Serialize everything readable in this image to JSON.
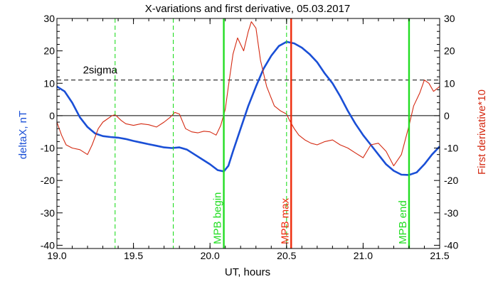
{
  "chart_data": {
    "type": "line",
    "title": "X-variations and first derivative, 05.03.2017",
    "xlabel": "UT, hours",
    "ylabel_left": "deltaX, nT",
    "ylabel_right": "First derivative*10",
    "xlim": [
      19.0,
      21.5
    ],
    "ylim": [
      -41,
      30
    ],
    "x_ticks": [
      19.0,
      19.5,
      20.0,
      20.5,
      21.0,
      21.5
    ],
    "x_tick_labels": [
      "19.0",
      "19.5",
      "20.0",
      "20.5",
      "21.0",
      "21.5"
    ],
    "y_ticks": [
      -40,
      -30,
      -20,
      -10,
      0,
      10,
      20,
      30
    ],
    "y_tick_labels": [
      "-40",
      "-30",
      "-20",
      "-10",
      "0",
      "10",
      "20",
      "30"
    ],
    "grid": false,
    "colors": {
      "deltaX": "#1a4fd6",
      "derivative": "#d42a12",
      "mpb_green": "#22dd22",
      "mpb_red": "#ee2a0a"
    },
    "series": [
      {
        "key": "deltaX",
        "axis": "left",
        "x": [
          19.0,
          19.05,
          19.1,
          19.15,
          19.2,
          19.25,
          19.3,
          19.35,
          19.4,
          19.45,
          19.5,
          19.55,
          19.6,
          19.65,
          19.7,
          19.75,
          19.8,
          19.85,
          19.9,
          19.95,
          20.0,
          20.05,
          20.09,
          20.12,
          20.15,
          20.2,
          20.25,
          20.3,
          20.35,
          20.4,
          20.45,
          20.5,
          20.55,
          20.6,
          20.65,
          20.7,
          20.75,
          20.8,
          20.85,
          20.9,
          20.95,
          21.0,
          21.05,
          21.1,
          21.15,
          21.2,
          21.25,
          21.3,
          21.35,
          21.4,
          21.45,
          21.5
        ],
        "values": [
          9,
          7.5,
          4,
          -0.5,
          -3.5,
          -5.5,
          -6.3,
          -6.6,
          -6.8,
          -7.2,
          -7.8,
          -8.3,
          -8.8,
          -9.3,
          -9.8,
          -10,
          -9.8,
          -10.5,
          -12,
          -13.5,
          -15,
          -16.8,
          -17.2,
          -15.5,
          -11,
          -4,
          3,
          9,
          14.5,
          18.5,
          21.5,
          22.8,
          22.3,
          21,
          19,
          16.5,
          13,
          10,
          6,
          1.5,
          -2.5,
          -6,
          -9,
          -12,
          -15,
          -17,
          -18.2,
          -18.3,
          -17.5,
          -15,
          -12,
          -9.5
        ]
      },
      {
        "key": "derivative",
        "axis": "right",
        "x": [
          19.0,
          19.03,
          19.06,
          19.1,
          19.15,
          19.2,
          19.23,
          19.27,
          19.3,
          19.33,
          19.36,
          19.38,
          19.42,
          19.45,
          19.5,
          19.55,
          19.6,
          19.65,
          19.7,
          19.74,
          19.77,
          19.8,
          19.84,
          19.88,
          19.92,
          19.96,
          20.0,
          20.04,
          20.07,
          20.1,
          20.12,
          20.15,
          20.18,
          20.22,
          20.25,
          20.27,
          20.3,
          20.33,
          20.37,
          20.42,
          20.46,
          20.5,
          20.52,
          20.55,
          20.58,
          20.62,
          20.66,
          20.7,
          20.75,
          20.8,
          20.85,
          20.9,
          20.95,
          21.0,
          21.05,
          21.1,
          21.15,
          21.2,
          21.25,
          21.3,
          21.33,
          21.37,
          21.4,
          21.43,
          21.46,
          21.5
        ],
        "values": [
          -2,
          -6,
          -9,
          -10,
          -10.5,
          -12,
          -9,
          -4,
          -2,
          -1,
          0,
          0.3,
          -1.5,
          -2.5,
          -3,
          -2.5,
          -2.8,
          -3.5,
          -2,
          -0.5,
          1,
          0.5,
          -4,
          -5,
          -5.3,
          -4.8,
          -5,
          -6,
          -3,
          2,
          9,
          19,
          24,
          20,
          26,
          29,
          27,
          17,
          9,
          3,
          1.5,
          0.5,
          -1.5,
          -4,
          -6,
          -7.5,
          -8.5,
          -9,
          -8,
          -7.5,
          -9,
          -10,
          -11.5,
          -13,
          -9,
          -8.5,
          -11,
          -15.5,
          -12,
          -3,
          3,
          7,
          11,
          10,
          7.5,
          9
        ]
      }
    ],
    "reference_lines": [
      {
        "key": "zero",
        "axis": "left",
        "y": 0,
        "style": "solid",
        "color": "#000000"
      },
      {
        "key": "two_sigma",
        "axis": "left",
        "y": 11,
        "style": "dashed",
        "color": "#000000",
        "label": "2sigma"
      }
    ],
    "markers": [
      {
        "key": "dash-1",
        "x": 19.38,
        "style": "dashed",
        "color": "#22dd22",
        "label": ""
      },
      {
        "key": "dash-2",
        "x": 19.76,
        "style": "dashed",
        "color": "#22dd22",
        "label": ""
      },
      {
        "key": "mpb-begin",
        "x": 20.09,
        "style": "solid",
        "color": "#22dd22",
        "label": "MPB begin"
      },
      {
        "key": "mpb-max-dashed",
        "x": 20.5,
        "style": "dashed",
        "color": "#22dd22",
        "label": ""
      },
      {
        "key": "mpb-max",
        "x": 20.53,
        "style": "solid",
        "color": "#ee2a0a",
        "label": "MPB max"
      },
      {
        "key": "mpb-end",
        "x": 21.3,
        "style": "solid",
        "color": "#22dd22",
        "label": "MPB end"
      }
    ]
  }
}
